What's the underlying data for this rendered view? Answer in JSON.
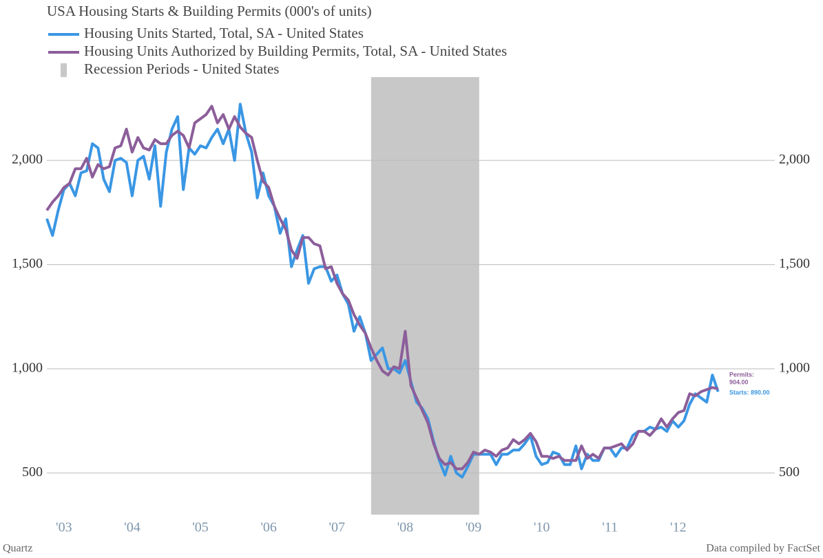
{
  "chart_data": {
    "type": "line",
    "title": "USA Housing Starts & Building Permits (000's of units)",
    "categories": [
      null,
      null,
      null,
      "'03",
      null,
      null,
      null,
      null,
      null,
      null,
      null,
      null,
      null,
      null,
      null,
      "'04",
      null,
      null,
      null,
      null,
      null,
      null,
      null,
      null,
      null,
      null,
      null,
      "'05",
      null,
      null,
      null,
      null,
      null,
      null,
      null,
      null,
      null,
      null,
      null,
      "'06",
      null,
      null,
      null,
      null,
      null,
      null,
      null,
      null,
      null,
      null,
      null,
      "'07",
      null,
      null,
      null,
      null,
      null,
      null,
      null,
      null,
      null,
      null,
      null,
      "'08",
      null,
      null,
      null,
      null,
      null,
      null,
      null,
      null,
      null,
      null,
      null,
      "'09",
      null,
      null,
      null,
      null,
      null,
      null,
      null,
      null,
      null,
      null,
      null,
      "'10",
      null,
      null,
      null,
      null,
      null,
      null,
      null,
      null,
      null,
      null,
      null,
      "'11",
      null,
      null,
      null,
      null,
      null,
      null,
      null,
      null,
      null,
      null,
      null,
      "'12",
      null,
      null,
      null,
      null,
      null,
      null,
      null
    ],
    "series": [
      {
        "name": "Housing Units Started, Total, SA - United States",
        "color": "#3a97e4",
        "values": [
          1720,
          1640,
          1760,
          1860,
          1890,
          1830,
          1940,
          1950,
          2080,
          2060,
          1910,
          1850,
          2000,
          2010,
          1990,
          1830,
          2000,
          2020,
          1910,
          2070,
          1780,
          2040,
          2150,
          2210,
          1860,
          2060,
          2030,
          2070,
          2060,
          2110,
          2150,
          2080,
          2150,
          2000,
          2270,
          2130,
          2040,
          1820,
          1940,
          1830,
          1780,
          1650,
          1720,
          1490,
          1570,
          1640,
          1410,
          1480,
          1490,
          1490,
          1420,
          1450,
          1360,
          1310,
          1180,
          1250,
          1170,
          1040,
          1070,
          1100,
          1000,
          1000,
          980,
          1040,
          940,
          840,
          810,
          760,
          650,
          560,
          490,
          580,
          500,
          480,
          530,
          590,
          590,
          590,
          590,
          540,
          590,
          590,
          610,
          610,
          640,
          680,
          580,
          540,
          550,
          600,
          590,
          540,
          540,
          630,
          520,
          590,
          560,
          560,
          620,
          620,
          580,
          620,
          620,
          680,
          700,
          700,
          720,
          710,
          720,
          700,
          750,
          720,
          750,
          830,
          880,
          860,
          840,
          970,
          890
        ]
      },
      {
        "name": "Housing Units Authorized by Building Permits, Total, SA - United States",
        "color": "#8c5e9a",
        "values": [
          1760,
          1800,
          1830,
          1870,
          1890,
          1960,
          1960,
          2010,
          1920,
          1980,
          1960,
          1970,
          2060,
          2070,
          2150,
          2040,
          2110,
          2060,
          2050,
          2100,
          2080,
          2080,
          2120,
          2140,
          2120,
          2060,
          2180,
          2200,
          2220,
          2260,
          2180,
          2220,
          2150,
          2210,
          2160,
          2130,
          2110,
          2000,
          1900,
          1870,
          1780,
          1720,
          1670,
          1570,
          1530,
          1630,
          1630,
          1600,
          1590,
          1480,
          1490,
          1410,
          1360,
          1330,
          1260,
          1210,
          1170,
          1100,
          1040,
          990,
          970,
          1010,
          1000,
          1180,
          920,
          860,
          800,
          740,
          640,
          570,
          540,
          550,
          520,
          520,
          550,
          600,
          590,
          610,
          600,
          580,
          610,
          620,
          660,
          640,
          660,
          690,
          650,
          580,
          580,
          570,
          580,
          560,
          560,
          560,
          630,
          570,
          590,
          570,
          620,
          620,
          630,
          640,
          610,
          640,
          700,
          700,
          680,
          710,
          760,
          720,
          760,
          790,
          800,
          880,
          870,
          890,
          900,
          910,
          904
        ]
      }
    ],
    "recession": {
      "name": "Recession Periods - United States",
      "color": "#c8c8c8",
      "range": [
        57,
        76
      ]
    },
    "annotations": [
      {
        "lines": [
          "Permits:",
          "904.00"
        ],
        "series": 1
      },
      {
        "lines": [
          "Starts: 890.00"
        ],
        "series": 0
      }
    ],
    "ylim": [
      300,
      2400
    ],
    "yticks": [
      500,
      {
        "value": 1000,
        "label": "1,000"
      },
      {
        "value": 1500,
        "label": "1,500"
      },
      {
        "value": 2000,
        "label": "2,000"
      }
    ],
    "grid": true,
    "source_left": "Quartz",
    "source_right": "Data compiled by FactSet"
  }
}
